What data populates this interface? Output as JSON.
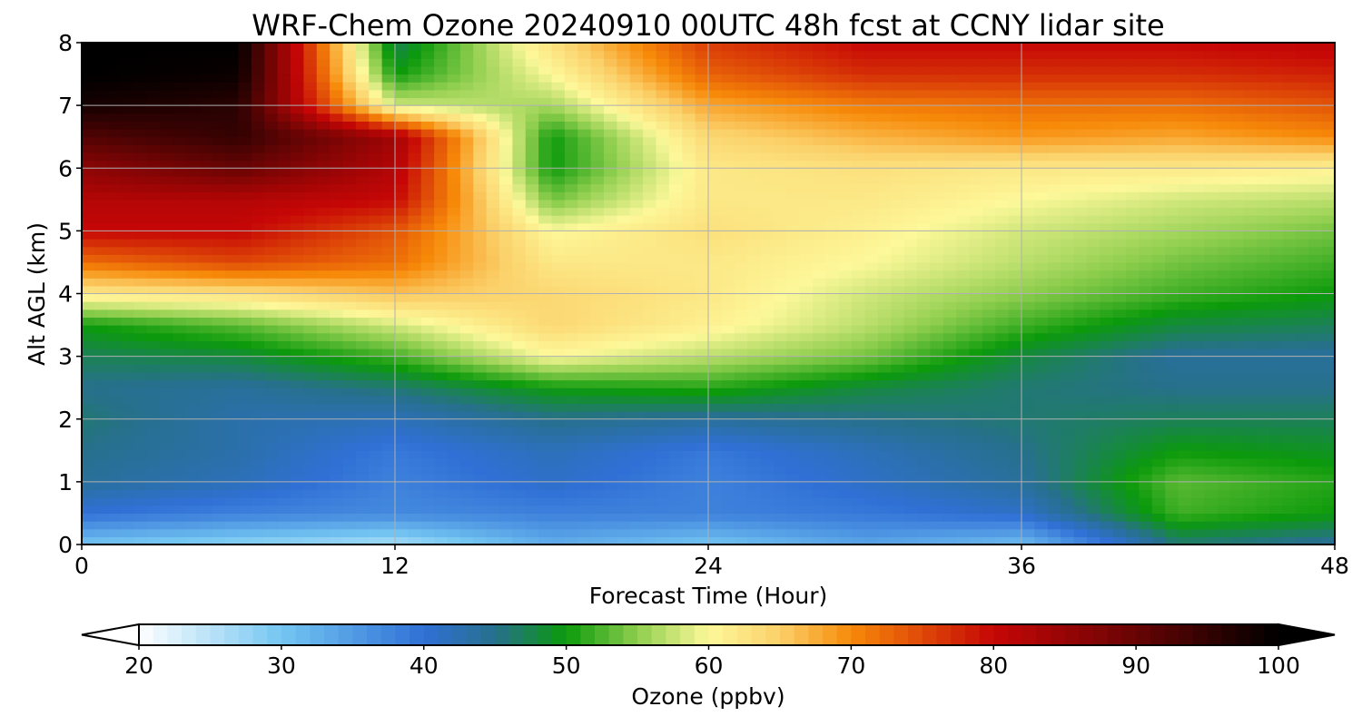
{
  "chart_data": {
    "type": "heatmap",
    "title": "WRF-Chem Ozone  20240910 00UTC 48h fcst at CCNY lidar site",
    "xlabel": "Forecast Time (Hour)",
    "ylabel": "Alt AGL (km)",
    "xlim": [
      0,
      48
    ],
    "ylim": [
      0,
      8
    ],
    "x_ticks": [
      0,
      12,
      24,
      36,
      48
    ],
    "y_ticks": [
      0,
      1,
      2,
      3,
      4,
      5,
      6,
      7,
      8
    ],
    "grid": true,
    "x": [
      0,
      6,
      12,
      18,
      24,
      30,
      36,
      42,
      48
    ],
    "y": [
      0,
      0.5,
      1,
      1.5,
      2,
      2.5,
      3,
      3.5,
      4,
      4.5,
      5,
      5.5,
      6,
      6.5,
      7,
      7.5,
      8
    ],
    "z": [
      [
        30,
        28,
        26,
        33,
        30,
        34,
        31,
        46,
        44
      ],
      [
        40,
        38,
        37,
        38,
        38,
        39,
        41,
        52,
        50
      ],
      [
        44,
        42,
        38,
        41,
        38,
        41,
        44,
        53,
        51
      ],
      [
        45,
        43,
        39,
        42,
        39,
        42,
        45,
        50,
        49
      ],
      [
        46,
        43,
        42,
        45,
        44,
        45,
        46,
        47,
        47
      ],
      [
        45,
        44,
        46,
        50,
        51,
        48,
        46,
        45,
        45
      ],
      [
        47,
        48,
        52,
        60,
        57,
        54,
        48,
        44,
        44
      ],
      [
        50,
        53,
        58,
        64,
        61,
        57,
        52,
        48,
        47
      ],
      [
        62,
        63,
        66,
        64,
        62,
        58,
        55,
        52,
        50
      ],
      [
        72,
        75,
        72,
        62,
        62,
        60,
        57,
        54,
        52
      ],
      [
        80,
        80,
        74,
        60,
        63,
        61,
        58,
        56,
        54
      ],
      [
        82,
        82,
        80,
        54,
        62,
        62,
        60,
        58,
        57
      ],
      [
        86,
        90,
        82,
        50,
        62,
        63,
        62,
        62,
        61
      ],
      [
        92,
        95,
        84,
        50,
        64,
        67,
        69,
        68,
        70
      ],
      [
        98,
        96,
        58,
        56,
        68,
        71,
        72,
        72,
        74
      ],
      [
        100,
        99,
        50,
        60,
        73,
        77,
        77,
        77,
        78
      ],
      [
        100,
        100,
        47,
        63,
        76,
        80,
        80,
        80,
        81
      ]
    ],
    "colorbar": {
      "label": "Ozone  (ppbv)",
      "ticks": [
        20,
        30,
        40,
        50,
        60,
        70,
        80,
        90,
        100
      ],
      "min": 20,
      "max": 100,
      "extend": "both",
      "stops": [
        {
          "v": 20,
          "c": "#ffffff"
        },
        {
          "v": 30,
          "c": "#74c6f2"
        },
        {
          "v": 40,
          "c": "#3070d6"
        },
        {
          "v": 45,
          "c": "#27708c"
        },
        {
          "v": 50,
          "c": "#0b9a0b"
        },
        {
          "v": 55,
          "c": "#8fce4e"
        },
        {
          "v": 60,
          "c": "#fdf89a"
        },
        {
          "v": 65,
          "c": "#fbd069"
        },
        {
          "v": 70,
          "c": "#f78a09"
        },
        {
          "v": 80,
          "c": "#c60606"
        },
        {
          "v": 90,
          "c": "#680404"
        },
        {
          "v": 100,
          "c": "#000000"
        }
      ]
    }
  }
}
